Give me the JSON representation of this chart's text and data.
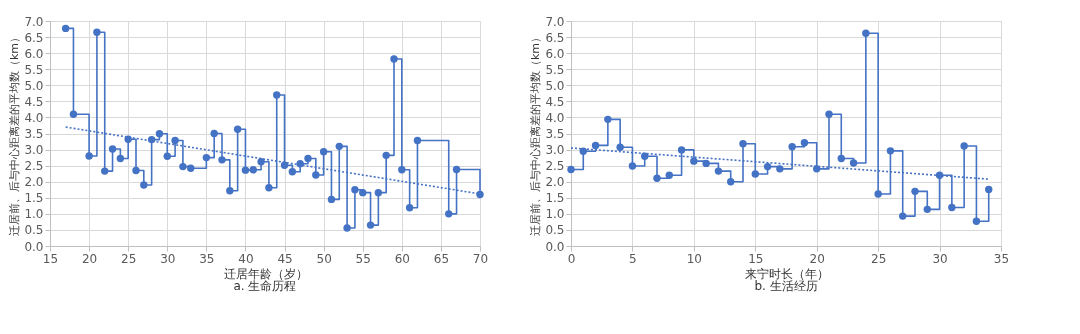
{
  "chart_data": [
    {
      "type": "step",
      "xlabel": "迁居年龄（岁）",
      "ylabel": "迁居前、后与中心距离差的平均数（km）",
      "annotations": [
        "a. 生命历程"
      ],
      "x": [
        17,
        18,
        20,
        21,
        22,
        23,
        24,
        25,
        26,
        27,
        28,
        29,
        30,
        31,
        32,
        33,
        35,
        36,
        37,
        38,
        39,
        40,
        41,
        42,
        43,
        44,
        45,
        46,
        47,
        48,
        49,
        50,
        51,
        52,
        53,
        54,
        55,
        56,
        57,
        58,
        59,
        60,
        61,
        62,
        66,
        67,
        70
      ],
      "series": [
        {
          "color": "#4472c4",
          "marker": "circle",
          "line_style": "solid",
          "values": [
            6.77,
            4.1,
            2.8,
            6.65,
            2.33,
            3.02,
            2.72,
            3.32,
            2.35,
            1.9,
            3.31,
            3.49,
            2.79,
            3.28,
            2.47,
            2.42,
            2.75,
            3.5,
            2.68,
            1.72,
            3.63,
            2.36,
            2.37,
            2.62,
            1.81,
            4.7,
            2.51,
            2.31,
            2.56,
            2.72,
            2.21,
            2.93,
            1.45,
            3.1,
            0.56,
            1.75,
            1.66,
            0.65,
            1.66,
            2.82,
            5.82,
            2.37,
            1.19,
            3.28,
            1.0,
            2.38,
            1.6
          ]
        },
        {
          "type": "line",
          "color": "#4472c4",
          "marker": "none",
          "line_style": "dotted",
          "x": [
            17,
            70
          ],
          "values": [
            3.7,
            1.62
          ]
        }
      ],
      "xlim": [
        15,
        70
      ],
      "xticks": [
        15,
        20,
        25,
        30,
        35,
        40,
        45,
        50,
        55,
        60,
        65,
        70
      ],
      "ylim": [
        0,
        7
      ],
      "yticks": [
        {
          "value": 0,
          "label": "0.0"
        },
        0.5,
        {
          "value": 1,
          "label": "1.0"
        },
        1.5,
        {
          "value": 2,
          "label": "2.0"
        },
        2.5,
        {
          "value": 3,
          "label": "3.0"
        },
        3.5,
        {
          "value": 4,
          "label": "4.0"
        },
        4.5,
        {
          "value": 5,
          "label": "5.0"
        },
        5.5,
        {
          "value": 6,
          "label": "6.0"
        },
        6.5,
        {
          "value": 7,
          "label": "7.0"
        }
      ],
      "grid": true
    },
    {
      "type": "step",
      "xlabel": "来宁时长（年）",
      "ylabel": "迁居前、后与中心距离差的平均数（km）",
      "annotations": [
        "b. 生活经历"
      ],
      "x": [
        0,
        1,
        2,
        3,
        4,
        5,
        6,
        7,
        8,
        9,
        10,
        11,
        12,
        13,
        14,
        15,
        16,
        17,
        18,
        19,
        20,
        21,
        22,
        23,
        24,
        25,
        26,
        27,
        28,
        29,
        30,
        31,
        32,
        33,
        34
      ],
      "series": [
        {
          "color": "#4472c4",
          "marker": "circle",
          "line_style": "solid",
          "values": [
            2.38,
            2.95,
            3.13,
            3.94,
            3.07,
            2.49,
            2.79,
            2.11,
            2.2,
            2.99,
            2.64,
            2.57,
            2.33,
            2.0,
            3.18,
            2.24,
            2.47,
            2.4,
            3.09,
            3.21,
            2.4,
            4.1,
            2.72,
            2.58,
            6.62,
            1.62,
            2.96,
            0.93,
            1.7,
            1.14,
            2.2,
            1.2,
            3.11,
            0.77,
            1.76
          ]
        },
        {
          "type": "line",
          "color": "#4472c4",
          "marker": "none",
          "line_style": "dotted",
          "x": [
            0,
            34
          ],
          "values": [
            3.05,
            2.08
          ]
        }
      ],
      "xlim": [
        0,
        35
      ],
      "xticks": [
        0,
        5,
        10,
        15,
        20,
        25,
        30,
        35
      ],
      "ylim": [
        0,
        7
      ],
      "yticks": [
        {
          "value": 0,
          "label": "0.0"
        },
        0.5,
        {
          "value": 1,
          "label": "1.0"
        },
        1.5,
        {
          "value": 2,
          "label": "2.0"
        },
        2.5,
        {
          "value": 3,
          "label": "3.0"
        },
        3.5,
        {
          "value": 4,
          "label": "4.0"
        },
        4.5,
        {
          "value": 5,
          "label": "5.0"
        },
        5.5,
        {
          "value": 6,
          "label": "6.0"
        },
        6.5,
        {
          "value": 7,
          "label": "7.0"
        }
      ],
      "grid": true
    }
  ]
}
